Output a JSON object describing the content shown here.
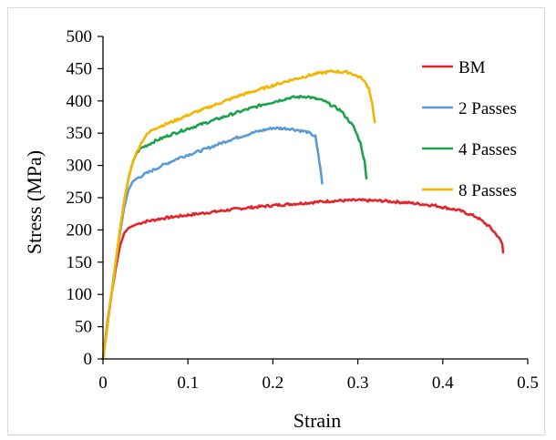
{
  "chart_data": {
    "type": "line",
    "title": "",
    "xlabel": "Strain",
    "ylabel": "Stress (MPa)",
    "xlim": [
      0,
      0.5
    ],
    "ylim": [
      0,
      500
    ],
    "xticks": [
      0,
      0.1,
      0.2,
      0.3,
      0.4,
      0.5
    ],
    "xtick_labels": [
      "0",
      "0.1",
      "0.2",
      "0.3",
      "0.4",
      "0.5"
    ],
    "yticks": [
      0,
      50,
      100,
      150,
      200,
      250,
      300,
      350,
      400,
      450,
      500
    ],
    "ytick_labels": [
      "0",
      "50",
      "100",
      "150",
      "200",
      "250",
      "300",
      "350",
      "400",
      "450",
      "500"
    ],
    "grid": false,
    "legend_position": "top-right",
    "series": [
      {
        "name": "BM",
        "color": "#e3242b",
        "x": [
          0,
          0.005,
          0.01,
          0.015,
          0.02,
          0.025,
          0.03,
          0.04,
          0.05,
          0.07,
          0.1,
          0.13,
          0.16,
          0.2,
          0.24,
          0.27,
          0.3,
          0.33,
          0.36,
          0.39,
          0.42,
          0.44,
          0.455,
          0.465,
          0.47,
          0.471
        ],
        "y": [
          0,
          55,
          100,
          140,
          175,
          195,
          203,
          209,
          213,
          218,
          223,
          228,
          233,
          238,
          242,
          245,
          246,
          245,
          242,
          238,
          230,
          220,
          205,
          190,
          178,
          165
        ]
      },
      {
        "name": "2 Passes",
        "color": "#5b9bd5",
        "x": [
          0,
          0.005,
          0.01,
          0.015,
          0.02,
          0.025,
          0.03,
          0.035,
          0.04,
          0.05,
          0.07,
          0.09,
          0.12,
          0.15,
          0.18,
          0.2,
          0.22,
          0.24,
          0.25,
          0.253,
          0.256,
          0.258
        ],
        "y": [
          0,
          50,
          100,
          150,
          195,
          235,
          262,
          275,
          280,
          287,
          300,
          312,
          325,
          340,
          352,
          358,
          357,
          352,
          345,
          320,
          295,
          272
        ]
      },
      {
        "name": "4 Passes",
        "color": "#1aa34a",
        "x": [
          0,
          0.005,
          0.01,
          0.015,
          0.02,
          0.025,
          0.03,
          0.035,
          0.04,
          0.045,
          0.05,
          0.06,
          0.08,
          0.1,
          0.13,
          0.16,
          0.19,
          0.22,
          0.24,
          0.26,
          0.28,
          0.295,
          0.303,
          0.308,
          0.31
        ],
        "y": [
          0,
          50,
          100,
          150,
          200,
          245,
          280,
          305,
          320,
          327,
          330,
          337,
          348,
          357,
          370,
          383,
          395,
          405,
          407,
          400,
          385,
          360,
          335,
          305,
          280
        ]
      },
      {
        "name": "8 Passes",
        "color": "#f4b400",
        "x": [
          0,
          0.005,
          0.01,
          0.015,
          0.02,
          0.025,
          0.03,
          0.035,
          0.04,
          0.045,
          0.05,
          0.055,
          0.06,
          0.08,
          0.1,
          0.13,
          0.16,
          0.19,
          0.22,
          0.25,
          0.27,
          0.29,
          0.305,
          0.313,
          0.317,
          0.32
        ],
        "y": [
          0,
          50,
          100,
          150,
          200,
          245,
          280,
          305,
          322,
          335,
          345,
          352,
          357,
          367,
          378,
          393,
          408,
          420,
          432,
          442,
          446,
          444,
          435,
          420,
          395,
          367
        ]
      }
    ]
  }
}
